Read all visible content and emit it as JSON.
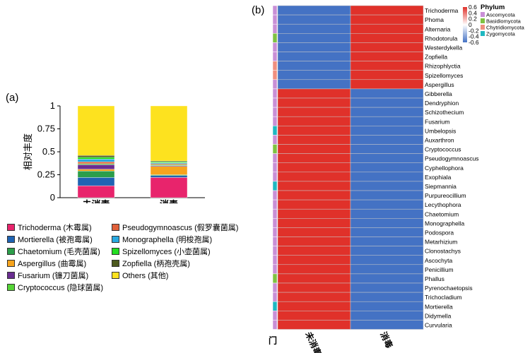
{
  "panel_a": {
    "label": "(a)",
    "chart_data": {
      "type": "bar",
      "stacked": true,
      "ylabel": "相对丰度",
      "ylim": [
        0,
        1
      ],
      "yticks": [
        "0",
        "0.25",
        "0.5",
        "0.75",
        "1"
      ],
      "categories": [
        "未消毒",
        "消毒"
      ],
      "series": [
        {
          "name": "Trichoderma (木霉属)",
          "color": "#e8246c",
          "values": [
            0.13,
            0.22
          ]
        },
        {
          "name": "Mortierella (被孢霉属)",
          "color": "#1f63b3",
          "values": [
            0.09,
            0.02
          ]
        },
        {
          "name": "Chaetomium (毛壳菌属)",
          "color": "#2c9e4a",
          "values": [
            0.07,
            0.01
          ]
        },
        {
          "name": "Aspergillus (曲霉属)",
          "color": "#f7a41d",
          "values": [
            0.02,
            0.09
          ]
        },
        {
          "name": "Fusarium (镰刀菌属)",
          "color": "#6a2d91",
          "values": [
            0.05,
            0.01
          ]
        },
        {
          "name": "Cryptococcus (隐球菌属)",
          "color": "#55d436",
          "values": [
            0.01,
            0.01
          ]
        },
        {
          "name": "Pseudogymnoascus (假罗囊菌属)",
          "color": "#e0603a",
          "values": [
            0.02,
            0.01
          ]
        },
        {
          "name": "Monographella (明梭孢属)",
          "color": "#29a9e0",
          "values": [
            0.03,
            0.01
          ]
        },
        {
          "name": "Spizellomyces (小壶菌属)",
          "color": "#22dd22",
          "values": [
            0.02,
            0.01
          ]
        },
        {
          "name": "Zopfiella (柄孢壳属)",
          "color": "#4d5a1e",
          "values": [
            0.02,
            0.01
          ]
        },
        {
          "name": "Others (其他)",
          "color": "#fde21f",
          "values": [
            0.54,
            0.6
          ]
        }
      ],
      "legend_order": [
        0,
        6,
        1,
        7,
        2,
        8,
        3,
        9,
        4,
        10,
        5
      ]
    }
  },
  "panel_b": {
    "label": "(b)",
    "chart_data": {
      "type": "heatmap",
      "columns": [
        "未消毒",
        "消毒"
      ],
      "row_annotation_label": "门",
      "rows": [
        "Trichoderma",
        "Phoma",
        "Alternaria",
        "Rhodotorula",
        "Westerdykella",
        "Zopfiella",
        "Rhizophlyctia",
        "Spizellomyces",
        "Aspergillus",
        "Gibberella",
        "Dendryphion",
        "Schizothecium",
        "Fusarium",
        "Umbelopsis",
        "Auxarthron",
        "Cryptococcus",
        "Pseudogymnoascus",
        "Cyphellophora",
        "Exophiala",
        "Siepmannia",
        "Purpureocillium",
        "Lecythophora",
        "Chaetomium",
        "Monographella",
        "Podospora",
        "Metarhizium",
        "Clonostachys",
        "Ascochyta",
        "Penicillium",
        "Phallus",
        "Pyrenochaetopsis",
        "Trichocladium",
        "Mortierella",
        "Didymella",
        "Curvularia"
      ],
      "values": [
        [
          -0.6,
          0.6
        ],
        [
          -0.6,
          0.6
        ],
        [
          -0.6,
          0.6
        ],
        [
          -0.6,
          0.6
        ],
        [
          -0.6,
          0.6
        ],
        [
          -0.6,
          0.6
        ],
        [
          -0.6,
          0.6
        ],
        [
          -0.6,
          0.6
        ],
        [
          -0.6,
          0.6
        ],
        [
          0.6,
          -0.6
        ],
        [
          0.6,
          -0.6
        ],
        [
          0.6,
          -0.6
        ],
        [
          0.6,
          -0.6
        ],
        [
          0.6,
          -0.6
        ],
        [
          0.6,
          -0.6
        ],
        [
          0.6,
          -0.6
        ],
        [
          0.6,
          -0.6
        ],
        [
          0.6,
          -0.6
        ],
        [
          0.6,
          -0.6
        ],
        [
          0.6,
          -0.6
        ],
        [
          0.6,
          -0.6
        ],
        [
          0.6,
          -0.6
        ],
        [
          0.6,
          -0.6
        ],
        [
          0.6,
          -0.6
        ],
        [
          0.6,
          -0.6
        ],
        [
          0.6,
          -0.6
        ],
        [
          0.6,
          -0.6
        ],
        [
          0.6,
          -0.6
        ],
        [
          0.6,
          -0.6
        ],
        [
          0.6,
          -0.6
        ],
        [
          0.6,
          -0.6
        ],
        [
          0.6,
          -0.6
        ],
        [
          0.6,
          -0.6
        ],
        [
          0.6,
          -0.6
        ],
        [
          0.6,
          -0.6
        ]
      ],
      "phylum": [
        "Ascomycota",
        "Ascomycota",
        "Ascomycota",
        "Basidiomycota",
        "Ascomycota",
        "Ascomycota",
        "Chytridiomycota",
        "Chytridiomycota",
        "Ascomycota",
        "Ascomycota",
        "Ascomycota",
        "Ascomycota",
        "Ascomycota",
        "Zygomycota",
        "Ascomycota",
        "Basidiomycota",
        "Ascomycota",
        "Ascomycota",
        "Ascomycota",
        "Zygomycota",
        "Ascomycota",
        "Ascomycota",
        "Ascomycota",
        "Ascomycota",
        "Ascomycota",
        "Ascomycota",
        "Ascomycota",
        "Ascomycota",
        "Ascomycota",
        "Basidiomycota",
        "Ascomycota",
        "Ascomycota",
        "Zygomycota",
        "Ascomycota",
        "Ascomycota"
      ],
      "colorbar": {
        "ticks": [
          "0.6",
          "0.4",
          "0.2",
          "0",
          "-0.2",
          "-0.4",
          "-0.6"
        ],
        "high_color": "#e0312a",
        "low_color": "#4472c4"
      },
      "phylum_legend": {
        "title": "Phylum",
        "entries": [
          {
            "name": "Ascomycota",
            "color": "#c98fd6"
          },
          {
            "name": "Basidiomycota",
            "color": "#7fc241"
          },
          {
            "name": "Chytridiomycota",
            "color": "#ef8f7f"
          },
          {
            "name": "Zygomycota",
            "color": "#1fb8c1"
          }
        ]
      }
    }
  }
}
